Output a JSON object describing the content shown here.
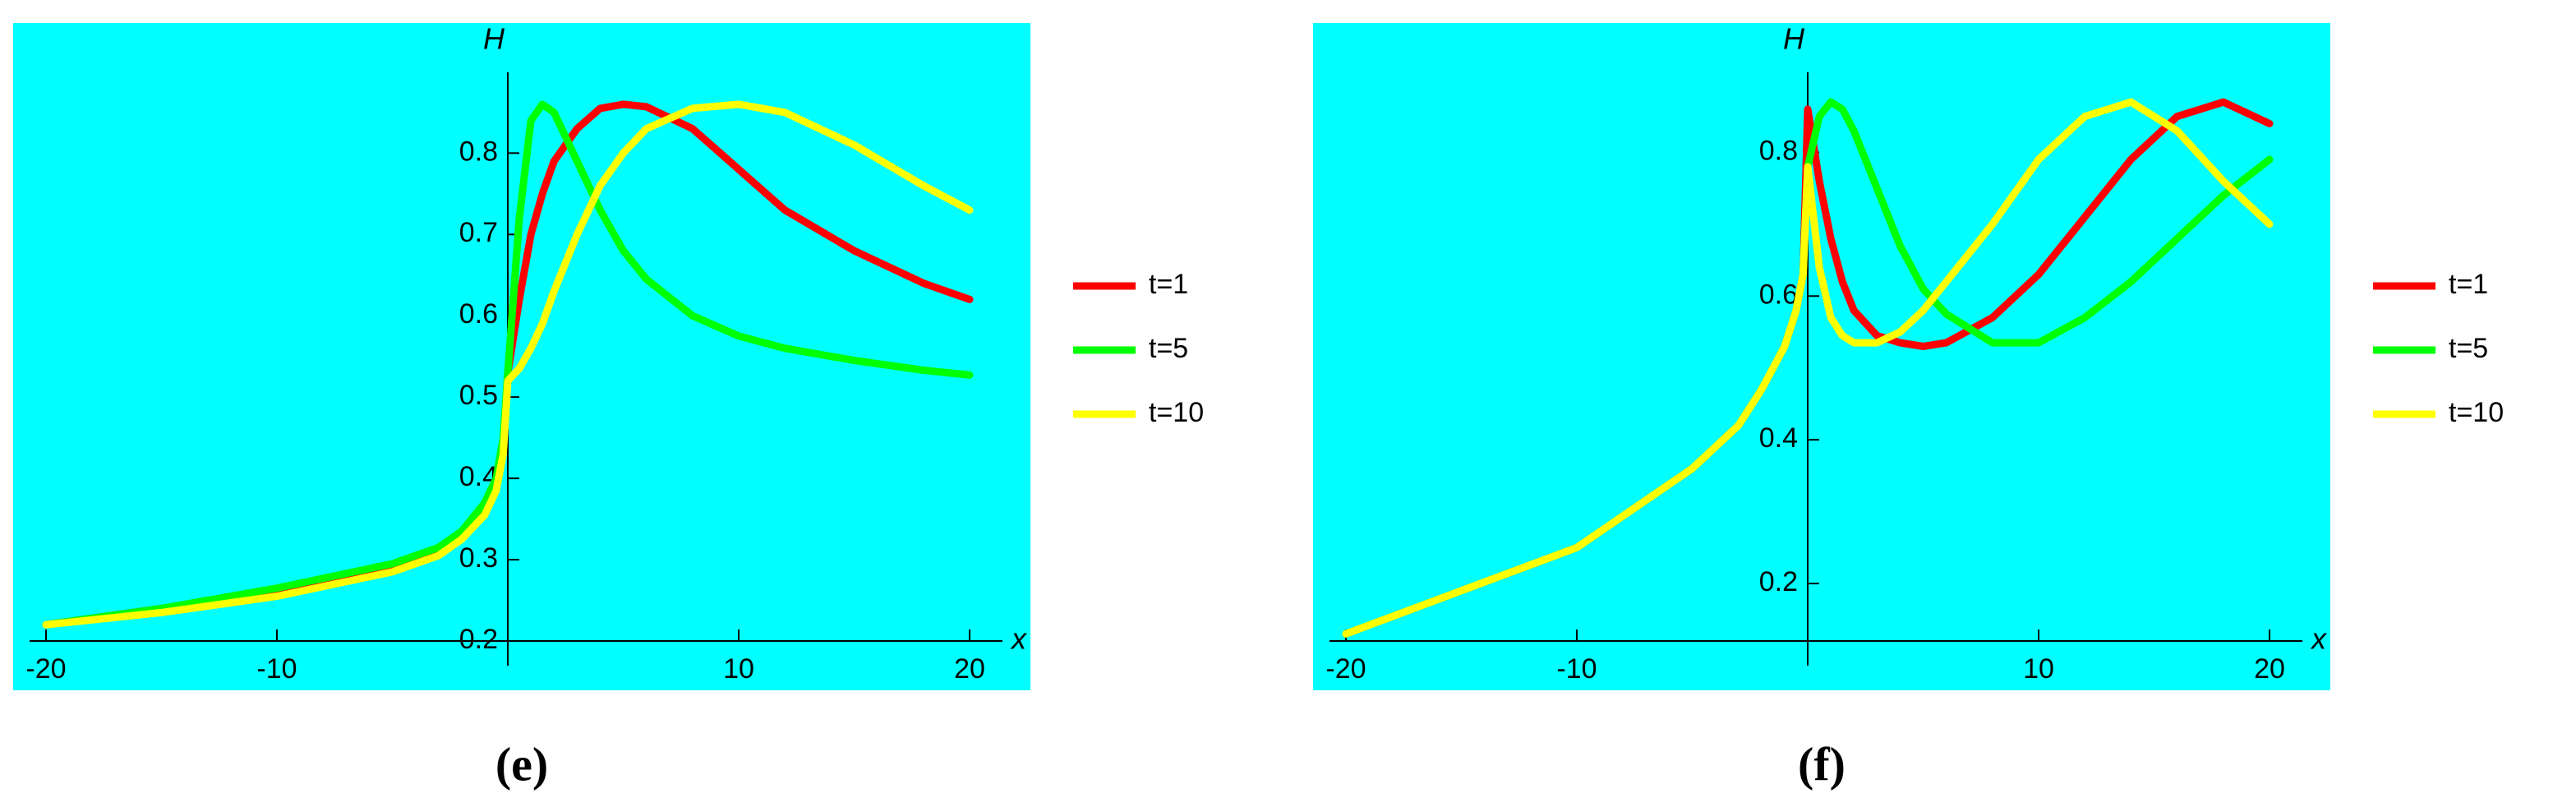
{
  "chart_data": [
    {
      "type": "line",
      "caption": "(e)",
      "xlabel": "x",
      "ylabel": "H",
      "background": "#00ffff",
      "legend": "right",
      "x": [
        -20,
        -15,
        -10,
        -5,
        -3,
        -2,
        -1,
        -0.5,
        -0.2,
        0,
        0.5,
        1,
        1.5,
        2,
        3,
        4,
        5,
        6,
        8,
        10,
        12,
        15,
        18,
        20
      ],
      "xlim": [
        -20,
        20
      ],
      "xticks": [
        -20,
        -10,
        10,
        20
      ],
      "ylim": [
        0.2,
        0.96
      ],
      "yticks": [
        0.2,
        0.3,
        0.4,
        0.5,
        0.6,
        0.7,
        0.8
      ],
      "series": [
        {
          "name": "t=1",
          "color": "#ff0000",
          "values": [
            0.22,
            0.24,
            0.26,
            0.29,
            0.31,
            0.33,
            0.36,
            0.39,
            0.44,
            0.53,
            0.62,
            0.7,
            0.75,
            0.79,
            0.83,
            0.855,
            0.86,
            0.857,
            0.83,
            0.78,
            0.73,
            0.68,
            0.64,
            0.62
          ]
        },
        {
          "name": "t=5",
          "color": "#00ff00",
          "values": [
            0.22,
            0.24,
            0.265,
            0.295,
            0.315,
            0.335,
            0.37,
            0.4,
            0.45,
            0.53,
            0.72,
            0.84,
            0.86,
            0.85,
            0.79,
            0.73,
            0.68,
            0.645,
            0.6,
            0.575,
            0.56,
            0.545,
            0.533,
            0.527
          ]
        },
        {
          "name": "t=10",
          "color": "#ffff00",
          "values": [
            0.22,
            0.235,
            0.255,
            0.285,
            0.305,
            0.325,
            0.355,
            0.385,
            0.43,
            0.52,
            0.535,
            0.56,
            0.59,
            0.63,
            0.7,
            0.76,
            0.8,
            0.83,
            0.855,
            0.86,
            0.85,
            0.81,
            0.76,
            0.73
          ]
        }
      ]
    },
    {
      "type": "line",
      "caption": "(f)",
      "xlabel": "x",
      "ylabel": "H",
      "background": "#00ffff",
      "legend": "right",
      "x": [
        -20,
        -15,
        -10,
        -5,
        -3,
        -2,
        -1,
        -0.5,
        -0.2,
        0,
        0.5,
        1,
        1.5,
        2,
        3,
        4,
        5,
        6,
        8,
        10,
        12,
        14,
        16,
        18,
        20
      ],
      "xlim": [
        -20,
        20
      ],
      "xticks": [
        -20,
        -10,
        10,
        20
      ],
      "ylim": [
        0.12,
        0.98
      ],
      "yticks": [
        0.2,
        0.4,
        0.6,
        0.8
      ],
      "series": [
        {
          "name": "t=1",
          "color": "#ff0000",
          "values": [
            0.13,
            0.19,
            0.25,
            0.36,
            0.42,
            0.47,
            0.53,
            0.58,
            0.63,
            0.86,
            0.76,
            0.68,
            0.62,
            0.58,
            0.545,
            0.535,
            0.53,
            0.535,
            0.57,
            0.63,
            0.71,
            0.79,
            0.85,
            0.87,
            0.84
          ]
        },
        {
          "name": "t=5",
          "color": "#00ff00",
          "values": [
            0.13,
            0.19,
            0.25,
            0.36,
            0.42,
            0.47,
            0.53,
            0.58,
            0.63,
            0.78,
            0.85,
            0.87,
            0.86,
            0.83,
            0.75,
            0.67,
            0.61,
            0.575,
            0.535,
            0.535,
            0.57,
            0.62,
            0.68,
            0.74,
            0.79
          ]
        },
        {
          "name": "t=10",
          "color": "#ffff00",
          "values": [
            0.13,
            0.19,
            0.25,
            0.36,
            0.42,
            0.47,
            0.53,
            0.58,
            0.63,
            0.78,
            0.64,
            0.57,
            0.545,
            0.535,
            0.535,
            0.55,
            0.58,
            0.62,
            0.7,
            0.79,
            0.85,
            0.87,
            0.83,
            0.76,
            0.7
          ]
        }
      ]
    }
  ]
}
